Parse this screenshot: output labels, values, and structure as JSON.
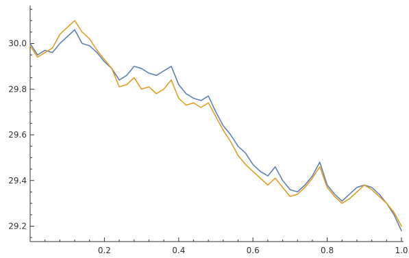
{
  "chart_data": {
    "type": "line",
    "title": "",
    "xlabel": "",
    "ylabel": "",
    "xlim": [
      0,
      1.0
    ],
    "ylim": [
      29.15,
      30.16
    ],
    "x_ticks": [
      0.2,
      0.4,
      0.6,
      0.8,
      1.0
    ],
    "x_tick_labels": [
      "0.2",
      "0.4",
      "0.6",
      "0.8",
      "1.0"
    ],
    "y_ticks": [
      29.2,
      29.4,
      29.6,
      29.8,
      30.0
    ],
    "y_tick_labels": [
      "29.2",
      "29.4",
      "29.6",
      "29.8",
      "30.0"
    ],
    "grid": false,
    "colors": {
      "series1": "#5e81b5",
      "series2": "#e19c24"
    },
    "x": [
      0.0,
      0.02,
      0.04,
      0.06,
      0.08,
      0.1,
      0.12,
      0.14,
      0.16,
      0.18,
      0.2,
      0.22,
      0.24,
      0.26,
      0.28,
      0.3,
      0.32,
      0.34,
      0.36,
      0.38,
      0.4,
      0.42,
      0.44,
      0.46,
      0.48,
      0.5,
      0.52,
      0.54,
      0.56,
      0.58,
      0.6,
      0.62,
      0.64,
      0.66,
      0.68,
      0.7,
      0.72,
      0.74,
      0.76,
      0.78,
      0.8,
      0.82,
      0.84,
      0.86,
      0.88,
      0.9,
      0.92,
      0.94,
      0.96,
      0.98,
      1.0
    ],
    "series": [
      {
        "values": [
          30.0,
          29.95,
          29.97,
          29.96,
          30.0,
          30.03,
          30.06,
          30.0,
          29.99,
          29.96,
          29.92,
          29.89,
          29.84,
          29.86,
          29.9,
          29.89,
          29.87,
          29.86,
          29.88,
          29.9,
          29.82,
          29.78,
          29.76,
          29.75,
          29.77,
          29.7,
          29.64,
          29.6,
          29.55,
          29.52,
          29.47,
          29.44,
          29.42,
          29.46,
          29.4,
          29.36,
          29.35,
          29.38,
          29.42,
          29.48,
          29.38,
          29.34,
          29.31,
          29.34,
          29.37,
          29.38,
          29.37,
          29.34,
          29.3,
          29.25,
          29.18
        ]
      },
      {
        "values": [
          29.99,
          29.94,
          29.96,
          29.98,
          30.04,
          30.07,
          30.1,
          30.05,
          30.02,
          29.97,
          29.93,
          29.89,
          29.81,
          29.82,
          29.85,
          29.8,
          29.81,
          29.78,
          29.8,
          29.84,
          29.76,
          29.73,
          29.74,
          29.72,
          29.74,
          29.68,
          29.62,
          29.57,
          29.51,
          29.47,
          29.44,
          29.41,
          29.38,
          29.41,
          29.37,
          29.33,
          29.34,
          29.37,
          29.41,
          29.46,
          29.37,
          29.33,
          29.3,
          29.32,
          29.35,
          29.38,
          29.36,
          29.33,
          29.3,
          29.26,
          29.2
        ]
      }
    ]
  }
}
